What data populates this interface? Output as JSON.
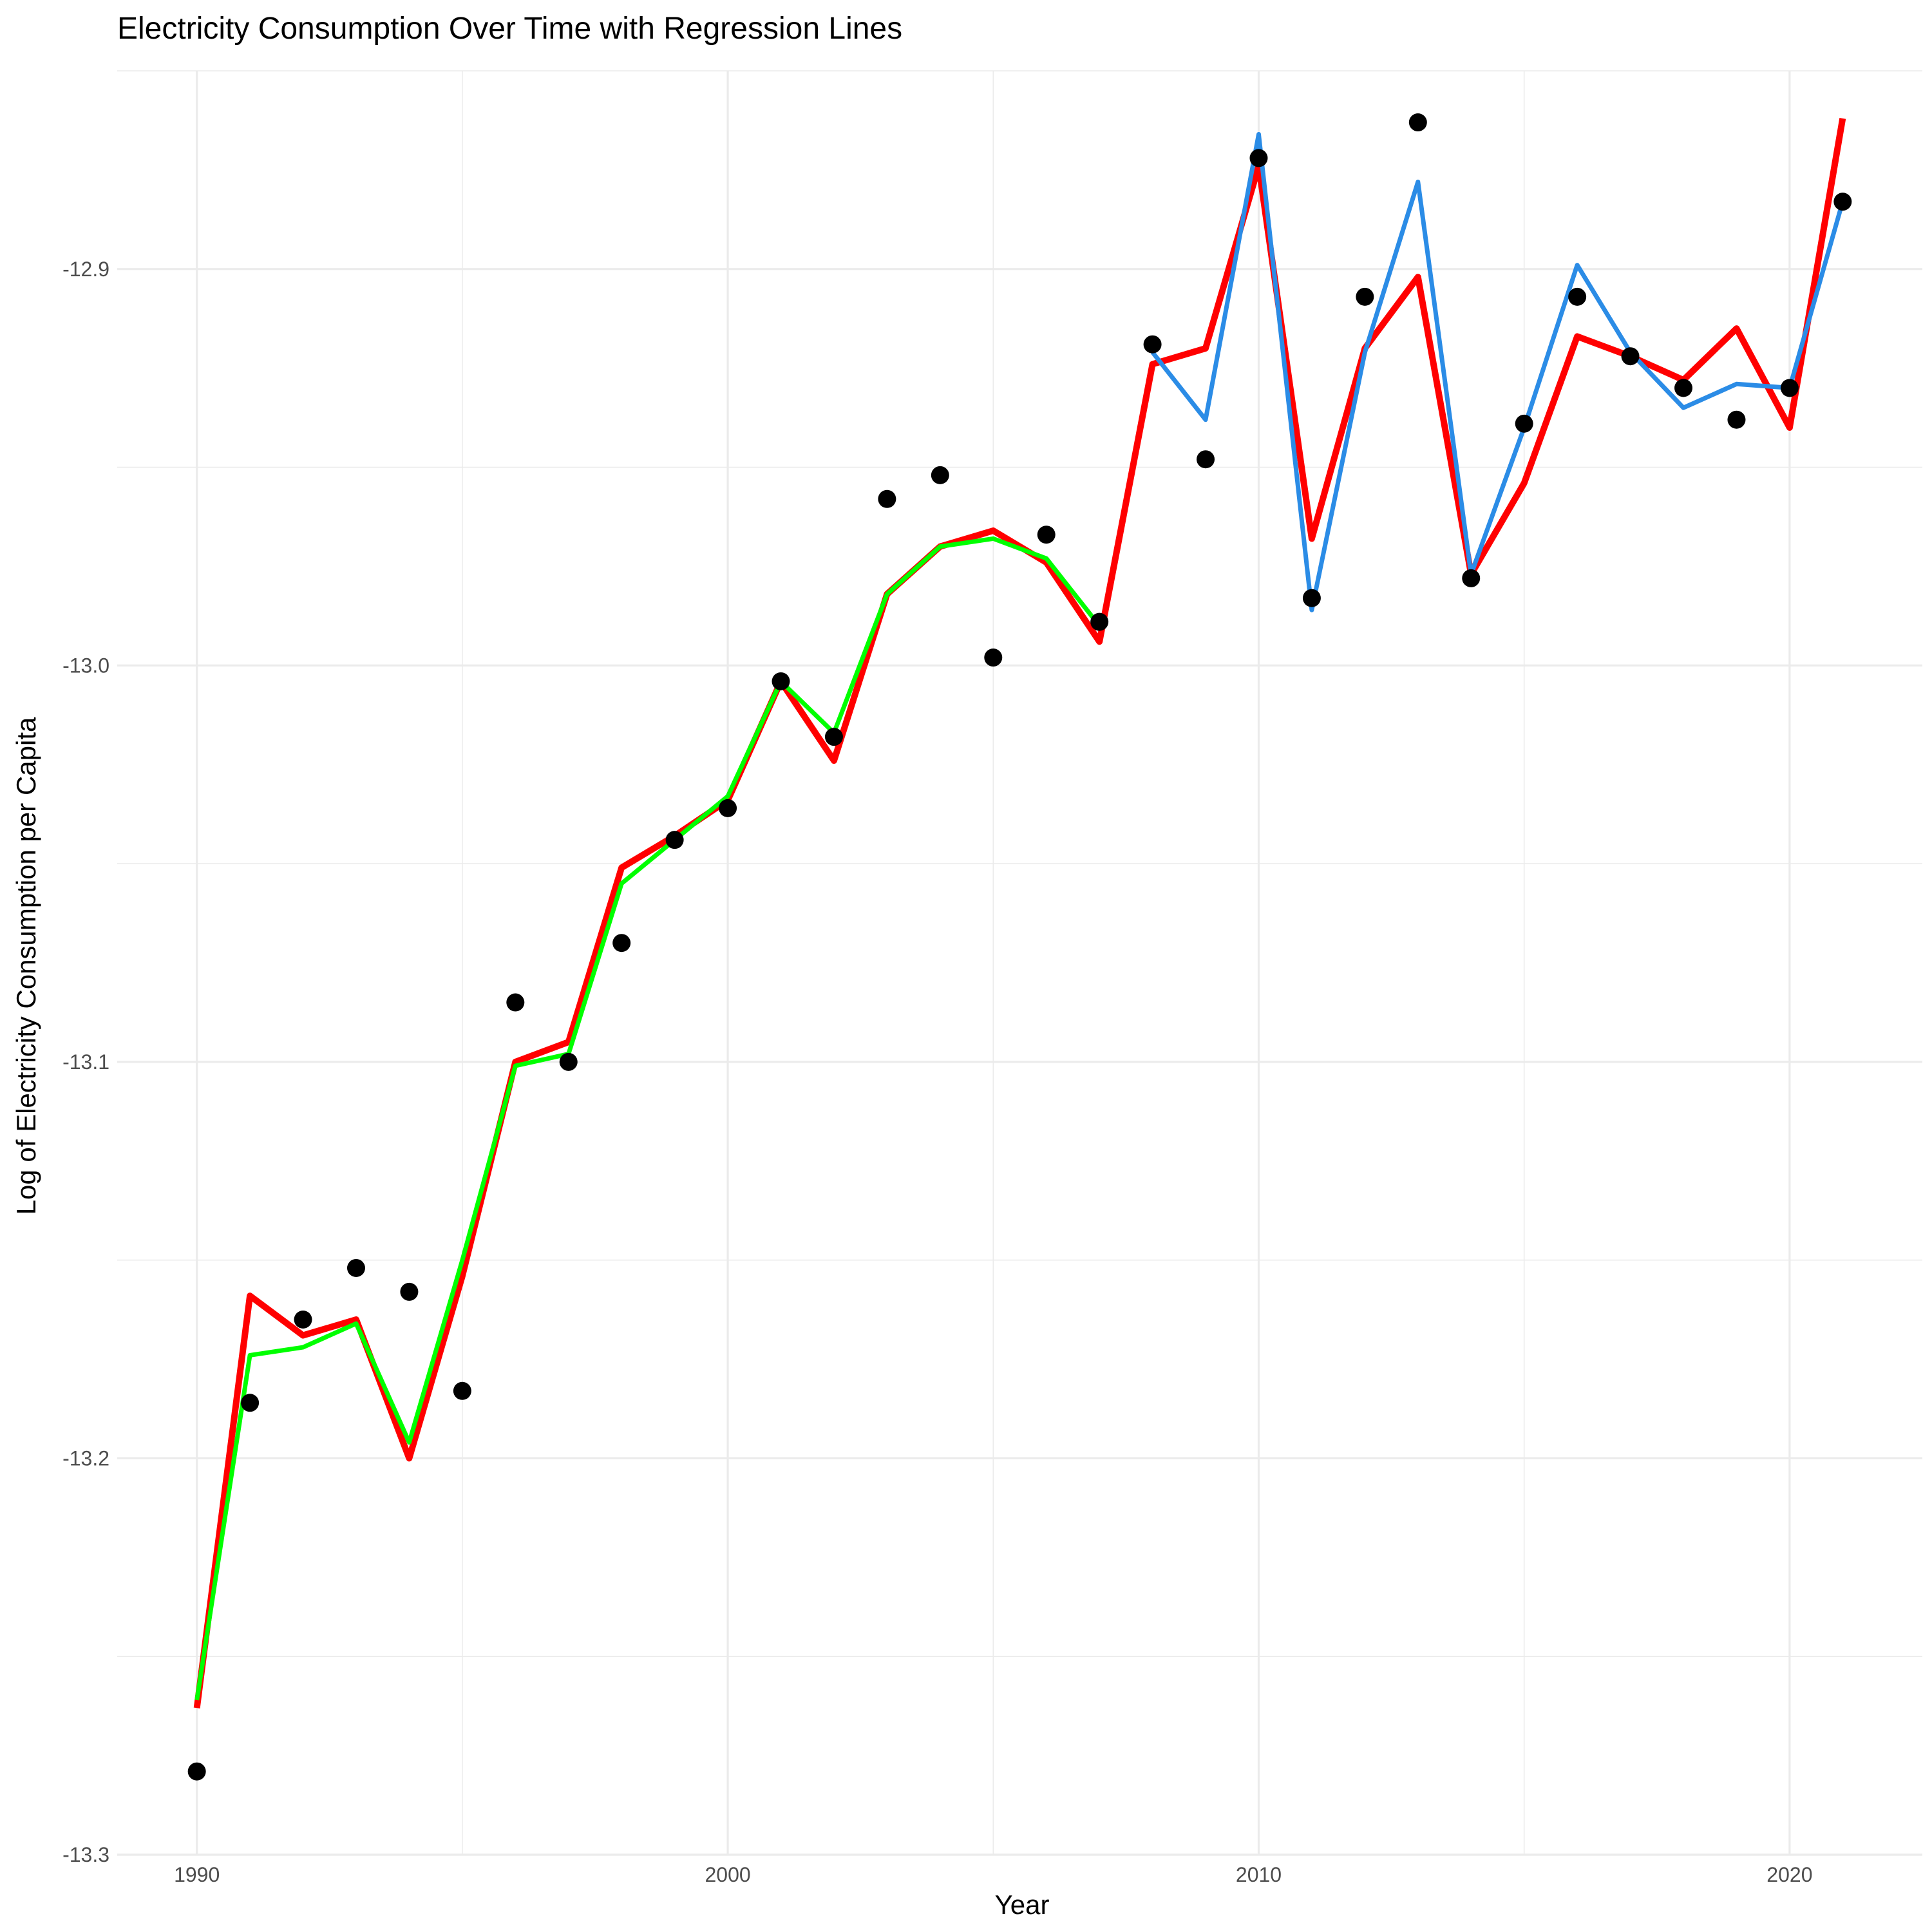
{
  "chart_data": {
    "type": "line",
    "title": "Electricity Consumption Over Time with Regression Lines",
    "xlabel": "Year",
    "ylabel": "Log of Electricity Consumption per Capita",
    "xlim": [
      1988.5,
      2022.5
    ],
    "ylim": [
      -13.3,
      -12.85
    ],
    "x_ticks": [
      1990,
      2000,
      2010,
      2020
    ],
    "x_tick_labels": [
      "1990",
      "2000",
      "2010",
      "2020"
    ],
    "y_ticks": [
      -13.3,
      -13.2,
      -13.1,
      -13.0,
      -12.9
    ],
    "y_tick_labels": [
      "-13.3",
      "-13.2",
      "-13.1",
      "-13.0",
      "-12.9"
    ],
    "grid": true,
    "legend": "none",
    "colors": {
      "points": "#000000",
      "red": "#ff0000",
      "green": "#00ff00",
      "blue": "#2b8ce6"
    },
    "points": {
      "x": [
        1990,
        1991,
        1992,
        1993,
        1994,
        1995,
        1996,
        1997,
        1998,
        1999,
        2000,
        2001,
        2002,
        2003,
        2004,
        2005,
        2006,
        2007,
        2008,
        2009,
        2010,
        2011,
        2012,
        2013,
        2014,
        2015,
        2016,
        2017,
        2018,
        2019,
        2020,
        2021
      ],
      "y": [
        -13.279,
        -13.186,
        -13.165,
        -13.152,
        -13.158,
        -13.183,
        -13.085,
        -13.1,
        -13.07,
        -13.044,
        -13.036,
        -13.004,
        -13.018,
        -12.958,
        -12.952,
        -12.998,
        -12.967,
        -12.989,
        -12.919,
        -12.948,
        -12.872,
        -12.983,
        -12.907,
        -12.863,
        -12.978,
        -12.939,
        -12.907,
        -12.922,
        -12.93,
        -12.938,
        -12.93,
        -12.883
      ]
    },
    "series": [
      {
        "color": "#ff0000",
        "x": [
          1990,
          1991,
          1992,
          1993,
          1994,
          1995,
          1996,
          1997,
          1998,
          1999,
          2000,
          2001,
          2002,
          2003,
          2004,
          2005,
          2006,
          2007,
          2008,
          2009,
          2010,
          2011,
          2012,
          2013,
          2014,
          2015,
          2016,
          2017,
          2018,
          2019,
          2020,
          2021
        ],
        "y": [
          -13.263,
          -13.159,
          -13.169,
          -13.165,
          -13.2,
          -13.154,
          -13.1,
          -13.095,
          -13.051,
          -13.043,
          -13.034,
          -13.004,
          -13.024,
          -12.982,
          -12.97,
          -12.966,
          -12.974,
          -12.994,
          -12.924,
          -12.92,
          -12.874,
          -12.968,
          -12.92,
          -12.902,
          -12.977,
          -12.954,
          -12.917,
          -12.922,
          -12.928,
          -12.915,
          -12.94,
          -12.862
        ]
      },
      {
        "color": "#00ff00",
        "x": [
          1990,
          1991,
          1992,
          1993,
          1994,
          1995,
          1996,
          1997,
          1998,
          1999,
          2000,
          2001,
          2002,
          2003,
          2004,
          2005,
          2006,
          2007
        ],
        "y": [
          -13.261,
          -13.174,
          -13.172,
          -13.166,
          -13.196,
          -13.15,
          -13.101,
          -13.098,
          -13.055,
          -13.044,
          -13.033,
          -13.004,
          -13.017,
          -12.982,
          -12.97,
          -12.968,
          -12.973,
          -12.99
        ]
      },
      {
        "color": "#2b8ce6",
        "x": [
          2008,
          2009,
          2010,
          2011,
          2012,
          2013,
          2014,
          2015,
          2016,
          2017,
          2018,
          2019,
          2020,
          2021
        ],
        "y": [
          -12.921,
          -12.938,
          -12.866,
          -12.986,
          -12.921,
          -12.878,
          -12.977,
          -12.94,
          -12.899,
          -12.921,
          -12.935,
          -12.929,
          -12.93,
          -12.883
        ]
      }
    ]
  }
}
